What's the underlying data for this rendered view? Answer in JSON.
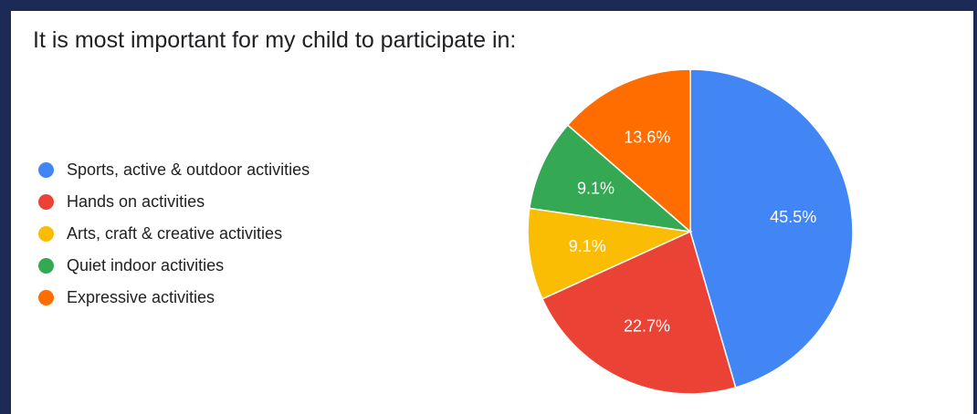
{
  "chart_data": {
    "type": "pie",
    "title": "It is most important for my child to participate in:",
    "categories": [
      "Sports, active & outdoor activities",
      "Hands on activities",
      "Arts, craft & creative activities",
      "Quiet indoor activities",
      "Expressive activities"
    ],
    "values": [
      45.5,
      22.7,
      9.1,
      9.1,
      13.6
    ],
    "labels": [
      "45.5%",
      "22.7%",
      "9.1%",
      "9.1%",
      "13.6%"
    ],
    "colors": [
      "#4285f4",
      "#ea4335",
      "#fbbc04",
      "#34a853",
      "#ff6d01"
    ],
    "legend": "left"
  }
}
